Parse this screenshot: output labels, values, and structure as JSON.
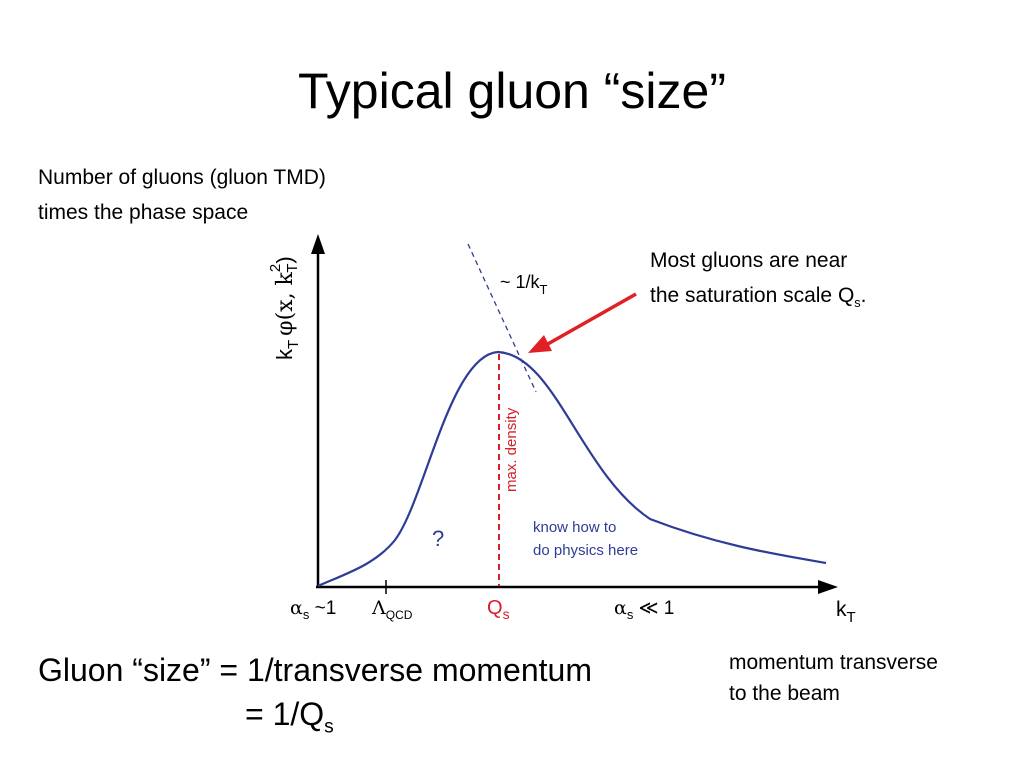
{
  "title": "Typical gluon “size”",
  "description": {
    "line1": "Number of gluons (gluon TMD)",
    "line2": "times the phase space"
  },
  "annotation": {
    "line1": "Most gluons are near",
    "line2_prefix": "the saturation scale Q",
    "line2_sub": "s",
    "line2_suffix": "."
  },
  "plot": {
    "y_axis_label": {
      "k": "k",
      "k_sub": "T",
      "phi": "φ(x, k",
      "sup": "2",
      "sub2": "T",
      "close": ")"
    },
    "x_axis_label": {
      "k": "k",
      "sub": "T"
    },
    "asymptote_label": {
      "prefix": "~ 1/k",
      "sub": "T"
    },
    "max_density_label": "max. density",
    "question_mark": "?",
    "know_how": {
      "line1": "know how to",
      "line2": "do physics here"
    },
    "x_ticks": {
      "alpha_strong": {
        "alpha": "α",
        "sub": "s",
        "rest": " ~1"
      },
      "lambda": {
        "sym": "Λ",
        "sub": "QCD"
      },
      "qs": {
        "q": "Q",
        "sub": "s"
      },
      "alpha_weak": {
        "alpha": "α",
        "sub": "s",
        "rest": " ≪ 1"
      }
    },
    "colors": {
      "curve": "#2e3c96",
      "red": "#d4212a",
      "axis": "#000000"
    }
  },
  "size_eq": {
    "line1": "Gluon “size” = 1/transverse momentum",
    "line2_prefix": "= 1/Q",
    "line2_sub": "s"
  },
  "momentum_note": {
    "line1": "momentum transverse",
    "line2": "to the beam"
  }
}
